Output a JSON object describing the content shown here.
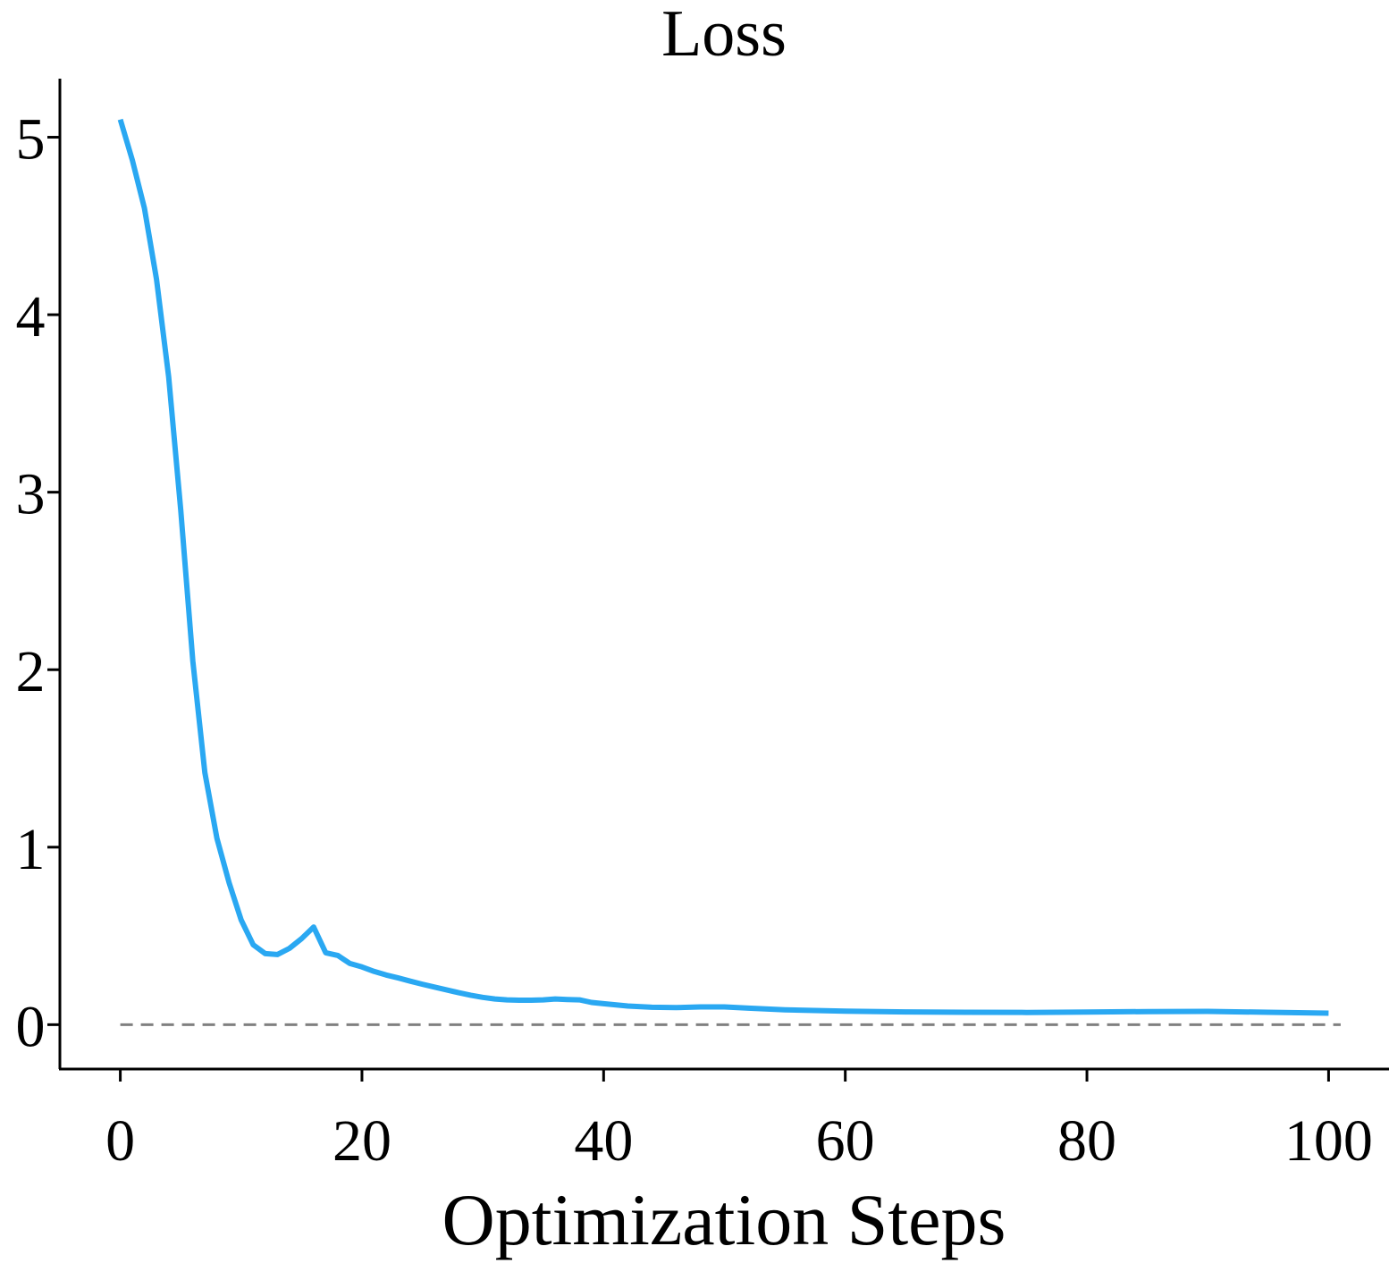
{
  "chart_data": {
    "type": "line",
    "title": "Loss",
    "xlabel": "Optimization Steps",
    "ylabel": "",
    "xlim": [
      -5,
      105
    ],
    "ylim": [
      -0.25,
      5.33
    ],
    "xticks": [
      0,
      20,
      40,
      60,
      80,
      100
    ],
    "yticks": [
      0,
      1,
      2,
      3,
      4,
      5
    ],
    "grid": false,
    "legend": "none",
    "series": [
      {
        "color": "#2aa8f2",
        "x": [
          0,
          1,
          2,
          3,
          4,
          5,
          6,
          7,
          8,
          9,
          10,
          11,
          12,
          13,
          14,
          15,
          16,
          17,
          18,
          19,
          20,
          21,
          22,
          23,
          24,
          25,
          26,
          27,
          28,
          29,
          30,
          31,
          32,
          33,
          34,
          35,
          36,
          37,
          38,
          39,
          40,
          42,
          44,
          46,
          48,
          50,
          52,
          55,
          60,
          65,
          70,
          75,
          80,
          85,
          90,
          95,
          100
        ],
        "y": [
          5.1,
          4.87,
          4.6,
          4.2,
          3.65,
          2.9,
          2.05,
          1.42,
          1.05,
          0.8,
          0.59,
          0.45,
          0.4,
          0.395,
          0.43,
          0.485,
          0.55,
          0.405,
          0.39,
          0.345,
          0.325,
          0.3,
          0.28,
          0.263,
          0.245,
          0.228,
          0.212,
          0.196,
          0.18,
          0.166,
          0.154,
          0.145,
          0.14,
          0.138,
          0.138,
          0.14,
          0.145,
          0.142,
          0.14,
          0.125,
          0.118,
          0.105,
          0.098,
          0.096,
          0.1,
          0.1,
          0.093,
          0.084,
          0.076,
          0.072,
          0.07,
          0.069,
          0.071,
          0.074,
          0.075,
          0.07,
          0.065
        ]
      }
    ],
    "reference_line": {
      "y": 0,
      "x": [
        0,
        101
      ],
      "style": "dashed",
      "color": "#808080"
    }
  }
}
